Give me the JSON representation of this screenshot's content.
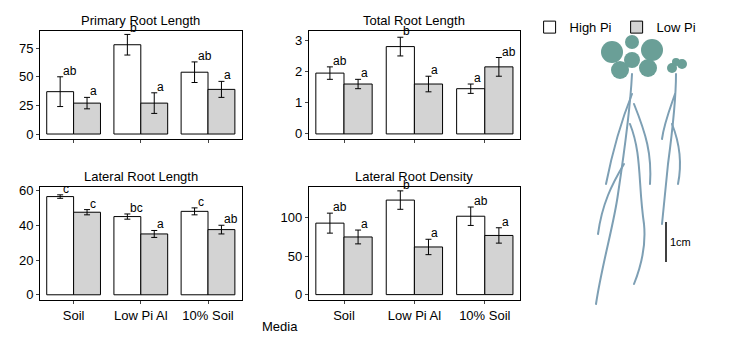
{
  "xlabel": "Media",
  "scale_label": "1cm",
  "chart_data": [
    {
      "type": "bar",
      "title": "Primary Root Length",
      "categories": [
        "Soil",
        "Low Pi Al",
        "10% Soil"
      ],
      "tick_labels": "y",
      "legend": "top right",
      "grid": false,
      "ylim": [
        -4,
        90
      ],
      "yticks": [
        0,
        25,
        50,
        75
      ],
      "series": [
        {
          "name": "High Pi",
          "color": "#ffffff",
          "values": [
            37,
            78,
            54
          ],
          "errors": [
            13,
            9,
            9
          ],
          "letters": [
            "ab",
            "b",
            "ab"
          ]
        },
        {
          "name": "Low Pi",
          "color": "#d3d3d3",
          "values": [
            27,
            27,
            39
          ],
          "errors": [
            5,
            9,
            7
          ],
          "letters": [
            "a",
            "a",
            "a"
          ]
        }
      ]
    },
    {
      "type": "bar",
      "title": "Total Root Length",
      "categories": [
        "Soil",
        "Low Pi Al",
        "10% Soil"
      ],
      "tick_labels": "y",
      "grid": false,
      "ylim": [
        -0.15,
        3.3
      ],
      "yticks": [
        0,
        1,
        2,
        3
      ],
      "series": [
        {
          "name": "High Pi",
          "color": "#ffffff",
          "values": [
            1.95,
            2.8,
            1.45
          ],
          "errors": [
            0.2,
            0.3,
            0.15
          ],
          "letters": [
            "ab",
            "b",
            "a"
          ]
        },
        {
          "name": "Low Pi",
          "color": "#d3d3d3",
          "values": [
            1.6,
            1.6,
            2.15
          ],
          "errors": [
            0.15,
            0.25,
            0.3
          ],
          "letters": [
            "a",
            "a",
            "ab"
          ]
        }
      ]
    },
    {
      "type": "bar",
      "title": "Lateral Root Length",
      "categories": [
        "Soil",
        "Low Pi Al",
        "10% Soil"
      ],
      "grid": false,
      "ylim": [
        -3,
        62
      ],
      "yticks": [
        0,
        20,
        40,
        60
      ],
      "series": [
        {
          "name": "High Pi",
          "color": "#ffffff",
          "values": [
            56.5,
            45,
            48
          ],
          "errors": [
            1,
            1.5,
            2
          ],
          "letters": [
            "c",
            "bc",
            "c"
          ]
        },
        {
          "name": "Low Pi",
          "color": "#d3d3d3",
          "values": [
            47.5,
            35,
            37.5
          ],
          "errors": [
            1.5,
            2,
            2.5
          ],
          "letters": [
            "c",
            "a",
            "ab"
          ]
        }
      ]
    },
    {
      "type": "bar",
      "title": "Lateral Root Density",
      "categories": [
        "Soil",
        "Low Pi Al",
        "10% Soil"
      ],
      "grid": false,
      "ylim": [
        -7,
        140
      ],
      "yticks": [
        0,
        50,
        100
      ],
      "series": [
        {
          "name": "High Pi",
          "color": "#ffffff",
          "values": [
            93,
            123,
            102
          ],
          "errors": [
            13,
            12,
            12
          ],
          "letters": [
            "ab",
            "b",
            "ab"
          ]
        },
        {
          "name": "Low Pi",
          "color": "#d3d3d3",
          "values": [
            75,
            62,
            77
          ],
          "errors": [
            9,
            10,
            10
          ],
          "letters": [
            "a",
            "a",
            "a"
          ]
        }
      ]
    }
  ]
}
